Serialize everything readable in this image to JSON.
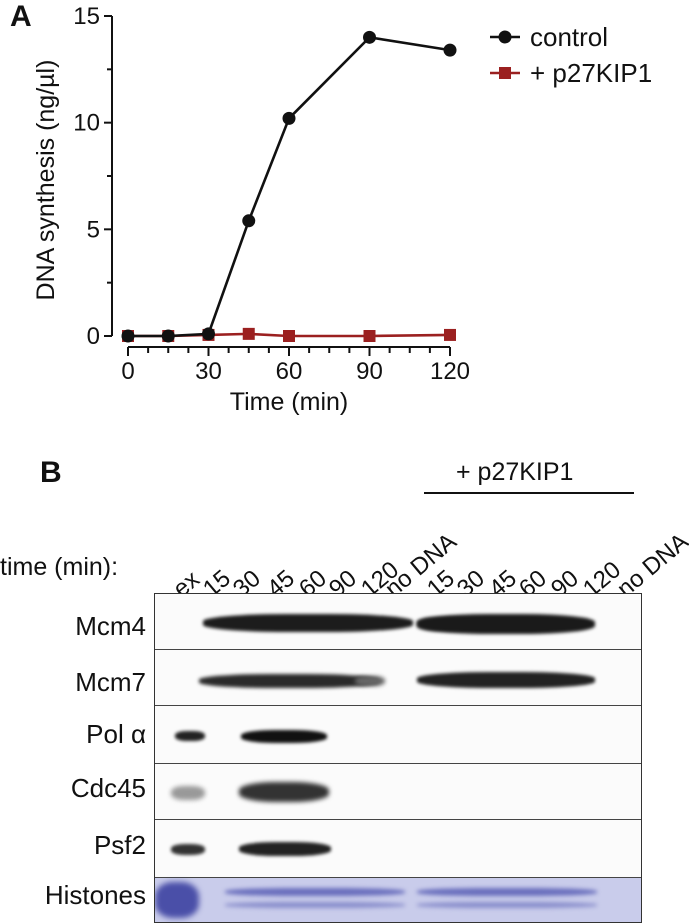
{
  "panel_a_label": "A",
  "panel_b_label": "B",
  "chart_data": {
    "type": "line",
    "xlabel": "Time (min)",
    "ylabel": "DNA synthesis (ng/µl)",
    "xlim": [
      0,
      120
    ],
    "ylim": [
      0,
      15
    ],
    "x_ticks": [
      "0",
      "30",
      "60",
      "90",
      "120"
    ],
    "y_ticks": [
      "0",
      "5",
      "10",
      "15"
    ],
    "grid": false,
    "legend_position": "top-right",
    "series": [
      {
        "name": "control",
        "color": "#111111",
        "marker": "circle",
        "x": [
          0,
          15,
          30,
          45,
          60,
          90,
          120
        ],
        "y": [
          0,
          0,
          0.1,
          5.4,
          10.2,
          14.0,
          13.4
        ]
      },
      {
        "name": "+ p27KIP1",
        "color": "#9b2020",
        "marker": "square",
        "x": [
          0,
          15,
          30,
          45,
          60,
          90,
          120
        ],
        "y": [
          0,
          0,
          0.05,
          0.1,
          0,
          0,
          0.05
        ]
      }
    ]
  },
  "blot": {
    "group_label": "+ p27KIP1",
    "time_label": "time (min):",
    "lanes": [
      "ex",
      "15",
      "30",
      "45",
      "60",
      "90",
      "120",
      "no DNA",
      "15",
      "30",
      "45",
      "60",
      "90",
      "120",
      "no DNA"
    ],
    "rows": [
      "Mcm4",
      "Mcm7",
      "Pol α",
      "Cdc45",
      "Psf2",
      "Histones"
    ]
  }
}
